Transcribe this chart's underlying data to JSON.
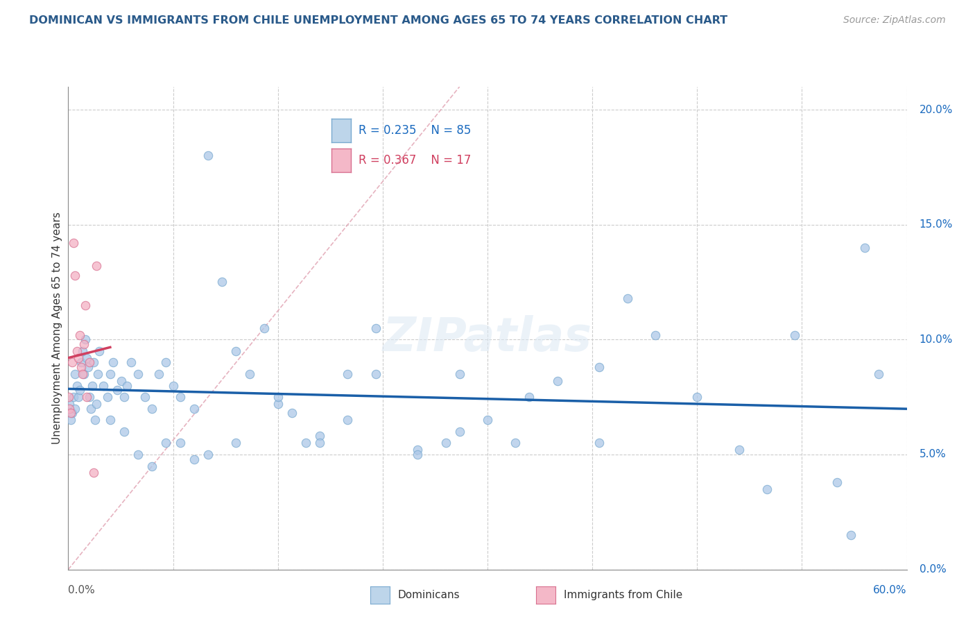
{
  "title": "DOMINICAN VS IMMIGRANTS FROM CHILE UNEMPLOYMENT AMONG AGES 65 TO 74 YEARS CORRELATION CHART",
  "source": "Source: ZipAtlas.com",
  "ylabel": "Unemployment Among Ages 65 to 74 years",
  "ytick_vals": [
    0,
    5,
    10,
    15,
    20
  ],
  "ytick_labels": [
    "0.0%",
    "5.0%",
    "10.0%",
    "15.0%",
    "20.0%"
  ],
  "xlim": [
    0,
    60
  ],
  "ylim": [
    0,
    21
  ],
  "watermark": "ZIPatlas",
  "legend_r1": "R = 0.235",
  "legend_n1": "N = 85",
  "legend_r2": "R = 0.367",
  "legend_n2": "N = 17",
  "dominican_color": "#adc8e8",
  "dominican_edge": "#7aaad0",
  "chile_color": "#f4b0c4",
  "chile_edge": "#d87090",
  "line_dom_color": "#1a5fa8",
  "line_chile_color": "#d04060",
  "diag_color": "#e0a0b0",
  "title_color": "#2a5a8a",
  "source_color": "#999999",
  "ytick_color": "#1a6abf",
  "xlabel_color_left": "#555555",
  "xlabel_color_right": "#1a6abf",
  "dom_x": [
    0.1,
    0.2,
    0.3,
    0.4,
    0.5,
    0.5,
    0.6,
    0.7,
    0.8,
    0.9,
    1.0,
    1.1,
    1.2,
    1.3,
    1.4,
    1.5,
    1.6,
    1.7,
    1.8,
    1.9,
    2.0,
    2.1,
    2.2,
    2.5,
    2.8,
    3.0,
    3.2,
    3.5,
    3.8,
    4.0,
    4.2,
    4.5,
    5.0,
    5.5,
    6.0,
    6.5,
    7.0,
    7.5,
    8.0,
    9.0,
    10.0,
    11.0,
    12.0,
    13.0,
    14.0,
    15.0,
    16.0,
    17.0,
    18.0,
    20.0,
    22.0,
    25.0,
    27.0,
    28.0,
    30.0,
    33.0,
    35.0,
    38.0,
    40.0,
    42.0,
    45.0,
    48.0,
    50.0,
    52.0,
    55.0,
    56.0,
    57.0,
    58.0,
    3.0,
    4.0,
    5.0,
    6.0,
    7.0,
    8.0,
    9.0,
    10.0,
    12.0,
    15.0,
    18.0,
    20.0,
    22.0,
    25.0,
    28.0,
    32.0,
    38.0
  ],
  "dom_y": [
    7.2,
    6.5,
    6.8,
    7.5,
    7.0,
    8.5,
    8.0,
    7.5,
    7.8,
    9.0,
    9.5,
    8.5,
    10.0,
    9.2,
    8.8,
    7.5,
    7.0,
    8.0,
    9.0,
    6.5,
    7.2,
    8.5,
    9.5,
    8.0,
    7.5,
    8.5,
    9.0,
    7.8,
    8.2,
    7.5,
    8.0,
    9.0,
    8.5,
    7.5,
    7.0,
    8.5,
    9.0,
    8.0,
    7.5,
    7.0,
    18.0,
    12.5,
    9.5,
    8.5,
    10.5,
    7.2,
    6.8,
    5.5,
    5.8,
    8.5,
    10.5,
    5.2,
    5.5,
    6.0,
    6.5,
    7.5,
    8.2,
    5.5,
    11.8,
    10.2,
    7.5,
    5.2,
    3.5,
    10.2,
    3.8,
    1.5,
    14.0,
    8.5,
    6.5,
    6.0,
    5.0,
    4.5,
    5.5,
    5.5,
    4.8,
    5.0,
    5.5,
    7.5,
    5.5,
    6.5,
    8.5,
    5.0,
    8.5,
    5.5,
    8.8
  ],
  "chile_x": [
    0.05,
    0.1,
    0.2,
    0.3,
    0.4,
    0.5,
    0.6,
    0.7,
    0.8,
    0.9,
    1.0,
    1.1,
    1.2,
    1.3,
    1.5,
    1.8,
    2.0
  ],
  "chile_y": [
    7.5,
    7.0,
    6.8,
    9.0,
    14.2,
    12.8,
    9.5,
    9.2,
    10.2,
    8.8,
    8.5,
    9.8,
    11.5,
    7.5,
    9.0,
    4.2,
    13.2
  ]
}
